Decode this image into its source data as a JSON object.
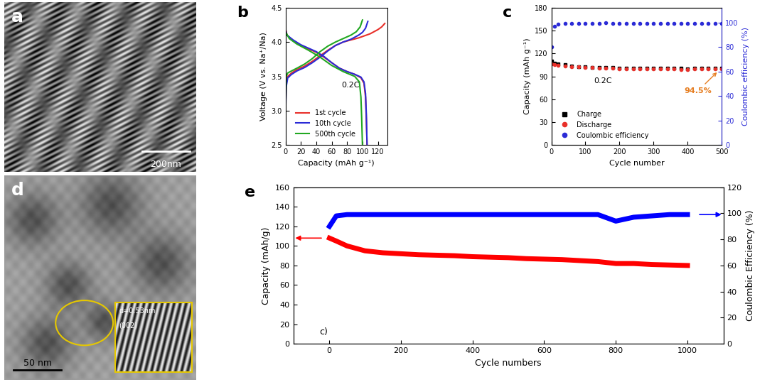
{
  "chart_data": [
    {
      "panel": "b",
      "type": "line",
      "xlabel": "Capacity (mAh g⁻¹)",
      "ylabel": "Voltage (V vs. Na⁺/Na)",
      "xlim": [
        0,
        132
      ],
      "xticks": [
        0,
        20,
        40,
        60,
        80,
        100,
        120
      ],
      "ylim": [
        2.5,
        4.5
      ],
      "yticks": [
        2.5,
        {
          "value": 3,
          "label": "3.0"
        },
        3.5,
        {
          "value": 4,
          "label": "4.0"
        },
        4.5
      ],
      "legend": "lower left",
      "annotations": [
        "0.2C"
      ],
      "series": [
        {
          "name": "1st cycle",
          "color": "#e8302a",
          "x": [
            0,
            1,
            3,
            8,
            15,
            25,
            35,
            45,
            55,
            65,
            75,
            85,
            95,
            100,
            105,
            110,
            115,
            120,
            125,
            129,
            null,
            0,
            2,
            10,
            20,
            30,
            40,
            50,
            60,
            70,
            80,
            90,
            98,
            102,
            104,
            105,
            106
          ],
          "values": [
            3.0,
            3.4,
            3.5,
            3.55,
            3.6,
            3.65,
            3.72,
            3.8,
            3.88,
            3.95,
            4.0,
            4.03,
            4.06,
            4.08,
            4.1,
            4.12,
            4.15,
            4.18,
            4.22,
            4.27,
            null,
            4.2,
            4.1,
            4.02,
            3.95,
            3.9,
            3.85,
            3.78,
            3.7,
            3.62,
            3.57,
            3.53,
            3.48,
            3.4,
            3.2,
            2.9,
            2.5
          ]
        },
        {
          "name": "10th cycle",
          "color": "#2b2bd6",
          "x": [
            0,
            1,
            3,
            8,
            15,
            25,
            35,
            45,
            55,
            65,
            75,
            85,
            95,
            100,
            104,
            107,
            null,
            0,
            2,
            10,
            20,
            30,
            40,
            50,
            60,
            70,
            80,
            90,
            98,
            102,
            104,
            105,
            106
          ],
          "values": [
            2.9,
            3.35,
            3.48,
            3.53,
            3.58,
            3.63,
            3.7,
            3.78,
            3.87,
            3.95,
            4.0,
            4.04,
            4.1,
            4.14,
            4.2,
            4.3,
            null,
            4.18,
            4.1,
            4.03,
            3.96,
            3.91,
            3.86,
            3.79,
            3.7,
            3.62,
            3.57,
            3.53,
            3.49,
            3.42,
            3.25,
            2.95,
            2.5
          ]
        },
        {
          "name": "500th cycle",
          "color": "#22a822",
          "x": [
            0,
            1,
            3,
            8,
            15,
            25,
            35,
            45,
            55,
            65,
            75,
            85,
            92,
            97,
            100,
            null,
            0,
            5,
            15,
            30,
            45,
            60,
            75,
            90,
            96,
            98,
            99,
            100
          ],
          "values": [
            2.9,
            3.5,
            3.55,
            3.58,
            3.62,
            3.68,
            3.76,
            3.86,
            3.94,
            4.0,
            4.05,
            4.1,
            4.15,
            4.22,
            4.32,
            null,
            4.15,
            4.05,
            3.97,
            3.88,
            3.78,
            3.66,
            3.57,
            3.5,
            3.42,
            3.2,
            2.9,
            2.5
          ]
        }
      ]
    },
    {
      "panel": "c",
      "type": "scatter",
      "xlabel": "Cycle number",
      "ylabel": "Capacity (mAh g⁻¹)",
      "y2label": "Coulombic efficiency (%)",
      "xlim": [
        0,
        500
      ],
      "xticks": [
        0,
        100,
        200,
        300,
        400,
        500
      ],
      "ylim": [
        0,
        180
      ],
      "yticks": [
        0,
        30,
        60,
        90,
        120,
        150,
        180
      ],
      "y2lim": [
        0,
        112
      ],
      "y2ticks": [
        0,
        20,
        40,
        60,
        80,
        100
      ],
      "legend": "lower left",
      "annotations": [
        "0.2C",
        "94.5%"
      ],
      "x": [
        1,
        10,
        20,
        40,
        60,
        80,
        100,
        120,
        140,
        160,
        180,
        200,
        220,
        240,
        260,
        280,
        300,
        320,
        340,
        360,
        380,
        400,
        420,
        440,
        460,
        480,
        500
      ],
      "series": [
        {
          "name": "Charge",
          "color": "#000000",
          "marker": "square",
          "values": [
            110,
            107,
            106,
            105,
            104,
            103,
            102.5,
            102,
            102,
            101.5,
            101.5,
            101,
            101,
            101,
            100.5,
            101,
            101,
            101,
            100.5,
            100.5,
            100.5,
            100,
            100.5,
            100.5,
            100.5,
            101,
            101
          ]
        },
        {
          "name": "Discharge",
          "color": "#e8302a",
          "marker": "circle",
          "values": [
            106,
            105,
            104.5,
            104,
            103,
            102.5,
            102,
            101.5,
            101,
            101,
            100.5,
            100,
            100,
            99.5,
            100,
            100,
            100,
            100,
            99.5,
            99.5,
            99,
            98.5,
            99.5,
            99.5,
            100,
            100,
            100
          ]
        },
        {
          "name": "Coulombic efficiency",
          "color": "#2b2bd6",
          "marker": "circle",
          "axis": "y2",
          "values": [
            80,
            97,
            98.5,
            99,
            99,
            99,
            99,
            99,
            99,
            99.5,
            99,
            99,
            99,
            99,
            99,
            99,
            99,
            99,
            99,
            99,
            99,
            99,
            99,
            99,
            99,
            99,
            99
          ]
        }
      ]
    },
    {
      "panel": "e",
      "type": "line",
      "xlabel": "Cycle numbers",
      "ylabel": "Capacity (mAh/g)",
      "y2label": "Coulombic Efficiency (%)",
      "xlim": [
        -100,
        1100
      ],
      "xticks": [
        0,
        200,
        400,
        600,
        800,
        1000
      ],
      "ylim": [
        0,
        160
      ],
      "yticks": [
        0,
        20,
        40,
        60,
        80,
        100,
        120,
        140,
        160
      ],
      "y2lim": [
        0,
        120
      ],
      "y2ticks": [
        0,
        20,
        40,
        60,
        80,
        100,
        120
      ],
      "annotations": [
        "c)"
      ],
      "x": [
        1,
        20,
        50,
        100,
        150,
        200,
        250,
        300,
        350,
        400,
        450,
        500,
        550,
        600,
        650,
        700,
        750,
        800,
        850,
        900,
        950,
        1000
      ],
      "series": [
        {
          "color": "#ff0000",
          "line_style": "solid",
          "values": [
            108,
            105,
            100,
            95,
            93,
            92,
            91,
            90.5,
            90,
            89,
            88.5,
            88,
            87,
            86.5,
            86,
            85,
            84,
            82,
            82,
            81,
            80.5,
            80
          ]
        },
        {
          "color": "#0000ff",
          "line_style": "solid",
          "axis": "y2",
          "values": [
            90,
            98,
            99,
            99,
            99,
            99,
            99,
            99,
            99,
            99,
            99,
            99,
            99,
            99,
            99,
            99,
            99,
            94,
            97,
            98,
            99,
            99
          ]
        }
      ]
    }
  ],
  "images": [
    {
      "panel": "a",
      "scale_bar": "200nm"
    },
    {
      "panel": "d",
      "scale_bar": "50 nm",
      "inset": [
        "d=0.53nm",
        "(002)"
      ]
    }
  ]
}
